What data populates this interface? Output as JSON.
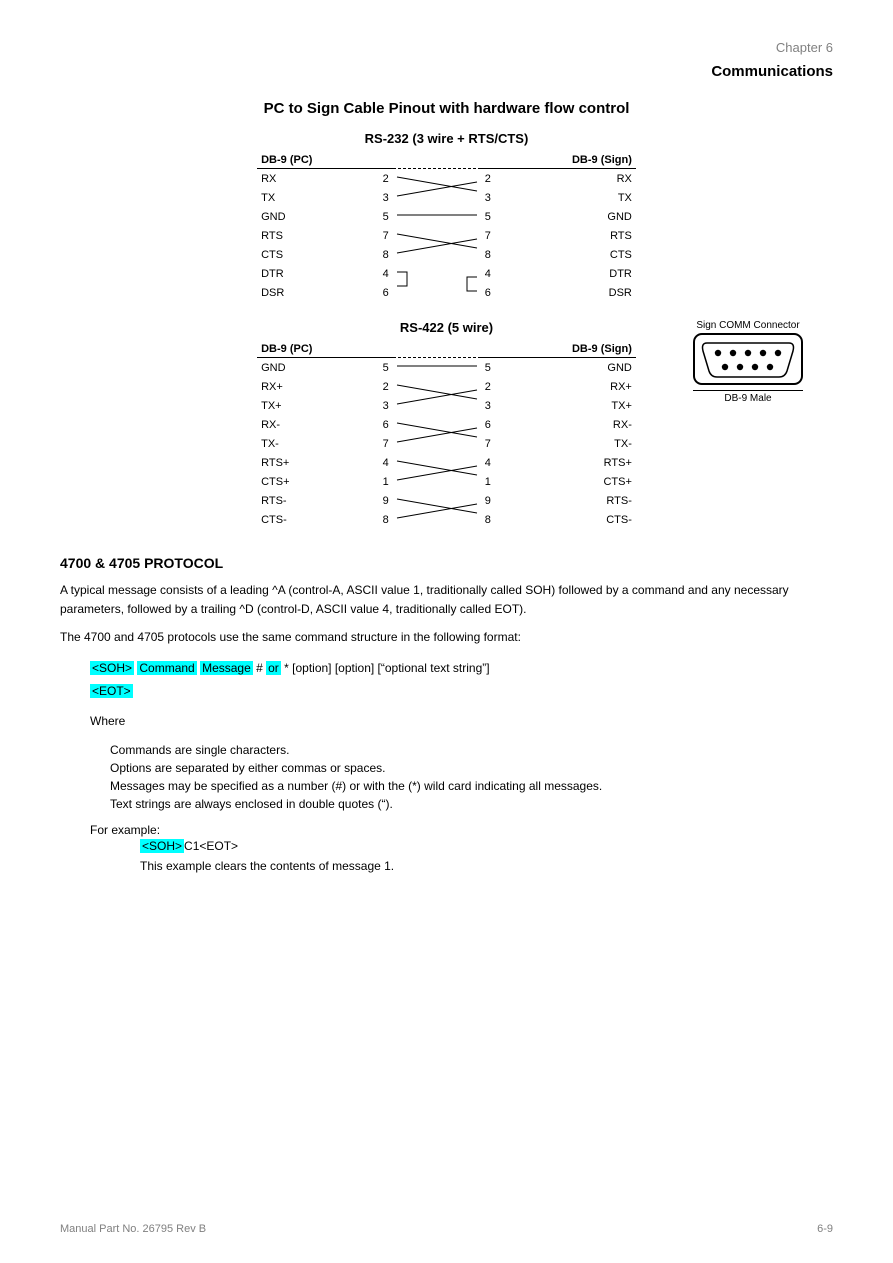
{
  "header": {
    "chapter": "Chapter 6",
    "topic": "Communications"
  },
  "cable": {
    "main_title": "PC to Sign Cable Pinout with hardware flow control",
    "table1": {
      "title": "RS-232 (3 wire + RTS/CTS)",
      "left_hdr": "DB-9 (PC)",
      "right_hdr": "DB-9 (Sign)",
      "rows": [
        {
          "l_name": "RX",
          "l_pin": "2",
          "r_pin": "2",
          "r_name": "RX",
          "wire": "cross-top"
        },
        {
          "l_name": "TX",
          "l_pin": "3",
          "r_pin": "3",
          "r_name": "TX",
          "wire": "cross-bot"
        },
        {
          "l_name": "GND",
          "l_pin": "5",
          "r_pin": "5",
          "r_name": "GND",
          "wire": "straight"
        },
        {
          "l_name": "RTS",
          "l_pin": "7",
          "r_pin": "7",
          "r_name": "RTS",
          "wire": "cross-top"
        },
        {
          "l_name": "CTS",
          "l_pin": "8",
          "r_pin": "8",
          "r_name": "CTS",
          "wire": "cross-bot"
        },
        {
          "l_name": "DTR",
          "l_pin": "4",
          "r_pin": "4",
          "r_name": "DTR",
          "wire": "loop-l"
        },
        {
          "l_name": "DSR",
          "l_pin": "6",
          "r_pin": "6",
          "r_name": "DSR",
          "wire": "loop-r"
        }
      ]
    },
    "table2": {
      "title": "RS-422 (5 wire)",
      "left_hdr": "DB-9 (PC)",
      "right_hdr": "DB-9 (Sign)",
      "rows": [
        {
          "l_name": "GND",
          "l_pin": "5",
          "r_pin": "5",
          "r_name": "GND",
          "wire": "straight"
        },
        {
          "l_name": "RX+",
          "l_pin": "2",
          "r_pin": "2",
          "r_name": "RX+",
          "wire": "cross-top"
        },
        {
          "l_name": "TX+",
          "l_pin": "3",
          "r_pin": "3",
          "r_name": "TX+",
          "wire": "cross-bot"
        },
        {
          "l_name": "RX-",
          "l_pin": "6",
          "r_pin": "6",
          "r_name": "RX-",
          "wire": "cross-top"
        },
        {
          "l_name": "TX-",
          "l_pin": "7",
          "r_pin": "7",
          "r_name": "TX-",
          "wire": "cross-bot"
        },
        {
          "l_name": "RTS+",
          "l_pin": "4",
          "r_pin": "4",
          "r_name": "RTS+",
          "wire": "cross-top"
        },
        {
          "l_name": "CTS+",
          "l_pin": "1",
          "r_pin": "1",
          "r_name": "CTS+",
          "wire": "cross-bot"
        },
        {
          "l_name": "RTS-",
          "l_pin": "9",
          "r_pin": "9",
          "r_name": "RTS-",
          "wire": "cross-top"
        },
        {
          "l_name": "CTS-",
          "l_pin": "8",
          "r_pin": "8",
          "r_name": "CTS-",
          "wire": "cross-bot"
        }
      ]
    },
    "db9": {
      "top_label": "Sign COMM Connector",
      "bottom_label": "DB-9 Male"
    }
  },
  "protocol": {
    "heading": "4700 & 4705 PROTOCOL",
    "para1": "A typical message consists of a leading ^A (control-A, ASCII value 1, traditionally called SOH) followed by a command and any necessary parameters, followed by a trailing ^D (control-D, ASCII value 4, traditionally called EOT).",
    "para2": "The 4700 and 4705 protocols use the same command structure in the following format:",
    "syntax": {
      "tokens": [
        {
          "text": "<SOH>",
          "hl": true
        },
        {
          "text": " ",
          "hl": false
        },
        {
          "text": "Command",
          "hl": true
        },
        {
          "text": "   ",
          "hl": false
        },
        {
          "text": "Message",
          "hl": true
        },
        {
          "text": " # ",
          "hl": false
        },
        {
          "text": "or",
          "hl": true
        },
        {
          "text": " *  [option]  [option]  [“optional text string”]",
          "hl": false
        }
      ],
      "line2": "<EOT>"
    },
    "where_label": "Where",
    "where_lines": [
      "Commands are single characters.",
      "Options are separated by either commas or spaces.",
      "Messages may be specified as a number (#) or with the (*) wild card indicating all messages.",
      "Text strings are always enclosed in double quotes (“)."
    ],
    "example_label": "For example:",
    "example_cmd_prefix": "<SOH>",
    "example_cmd_rest": "C1<EOT>",
    "example_desc": "This example clears the contents of message 1."
  },
  "footer": {
    "left": "Manual Part No. 26795 Rev B",
    "right": "6-9"
  },
  "style": {
    "highlight_color": "#00ffff",
    "text_color": "#000000",
    "gray_color": "#808080",
    "background": "#ffffff"
  }
}
